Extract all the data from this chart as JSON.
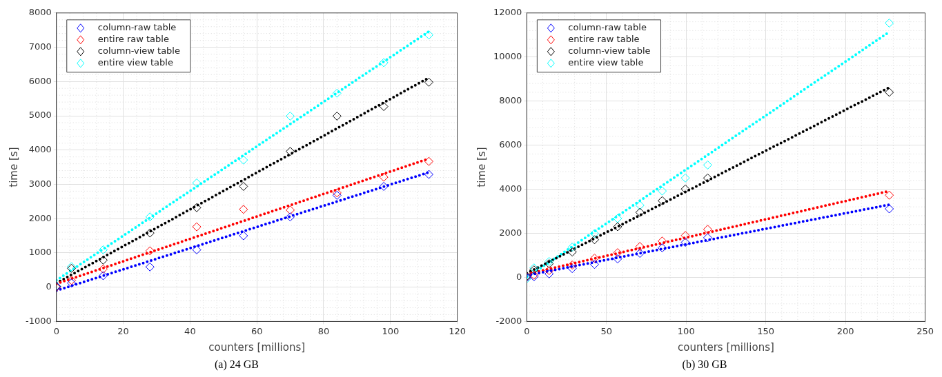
{
  "chart_data": [
    {
      "type": "scatter",
      "title": "(a)  24 GB",
      "xlabel": "counters [millions]",
      "ylabel": "time [s]",
      "xlim": [
        0,
        120
      ],
      "xticks": [
        0,
        20,
        40,
        60,
        80,
        100,
        120
      ],
      "ylim": [
        -1000,
        8000
      ],
      "yticks": [
        -1000,
        0,
        1000,
        2000,
        3000,
        4000,
        5000,
        6000,
        7000,
        8000
      ],
      "grid": true,
      "legend": "top left",
      "marker": "diamond",
      "x": [
        0,
        4.5,
        14,
        28,
        42,
        56,
        70,
        84,
        98,
        111.5
      ],
      "series": [
        {
          "name": "column-raw table",
          "color": "#0000ff",
          "values": [
            20,
            120,
            335,
            590,
            1090,
            1500,
            2050,
            2680,
            2940,
            3290
          ]
        },
        {
          "name": "entire raw table",
          "color": "#ff0000",
          "values": [
            0,
            200,
            530,
            1060,
            1760,
            2270,
            2250,
            2750,
            3210,
            3670
          ]
        },
        {
          "name": "column-view table",
          "color": "#000000",
          "values": [
            20,
            550,
            790,
            1580,
            2320,
            2940,
            3960,
            4990,
            5270,
            5980
          ]
        },
        {
          "name": "entire view table",
          "color": "#00ffff",
          "values": [
            30,
            600,
            1090,
            2050,
            3040,
            3710,
            4990,
            5660,
            6550,
            7360
          ]
        },
        {
          "type": "line",
          "line_style": "dotted",
          "marker": "none",
          "color": "#0000ff",
          "x": [
            0,
            111.5
          ],
          "values": [
            -100,
            3350
          ]
        },
        {
          "type": "line",
          "line_style": "dotted",
          "marker": "none",
          "color": "#ff0000",
          "x": [
            0,
            111.5
          ],
          "values": [
            100,
            3750
          ]
        },
        {
          "type": "line",
          "line_style": "dotted",
          "marker": "none",
          "color": "#000000",
          "x": [
            0,
            111.5
          ],
          "values": [
            120,
            6110
          ]
        },
        {
          "type": "line",
          "line_style": "dotted",
          "marker": "none",
          "color": "#00ffff",
          "x": [
            0,
            111.5
          ],
          "values": [
            200,
            7460
          ]
        }
      ]
    },
    {
      "type": "scatter",
      "title": "(b)  30 GB",
      "xlabel": "counters [millions]",
      "ylabel": "time [s]",
      "xlim": [
        0,
        250
      ],
      "xticks": [
        0,
        50,
        100,
        150,
        200,
        250
      ],
      "ylim": [
        -2000,
        12000
      ],
      "yticks": [
        -2000,
        0,
        2000,
        4000,
        6000,
        8000,
        10000,
        12000
      ],
      "grid": true,
      "legend": "top left",
      "marker": "diamond",
      "x": [
        0,
        4.5,
        14,
        28.5,
        42.5,
        57,
        71,
        85,
        99.5,
        113.5,
        227.5
      ],
      "series": [
        {
          "name": "column-raw table",
          "color": "#0000ff",
          "values": [
            0,
            30,
            160,
            400,
            590,
            840,
            1090,
            1340,
            1590,
            1800,
            3110
          ]
        },
        {
          "name": "entire raw table",
          "color": "#ff0000",
          "values": [
            0,
            100,
            310,
            560,
            870,
            1120,
            1400,
            1650,
            1900,
            2180,
            3730
          ]
        },
        {
          "name": "column-view table",
          "color": "#000000",
          "values": [
            50,
            340,
            620,
            1150,
            1710,
            2300,
            2950,
            3480,
            4010,
            4510,
            8400
          ]
        },
        {
          "name": "entire view table",
          "color": "#00ffff",
          "values": [
            -60,
            430,
            720,
            1370,
            1990,
            2670,
            3270,
            3920,
            4510,
            5100,
            11540
          ]
        },
        {
          "type": "line",
          "line_style": "dotted",
          "marker": "none",
          "color": "#0000ff",
          "x": [
            0,
            227.5
          ],
          "values": [
            90,
            3300
          ]
        },
        {
          "type": "line",
          "line_style": "dotted",
          "marker": "none",
          "color": "#ff0000",
          "x": [
            0,
            227.5
          ],
          "values": [
            150,
            3920
          ]
        },
        {
          "type": "line",
          "line_style": "dotted",
          "marker": "none",
          "color": "#000000",
          "x": [
            0,
            227.5
          ],
          "values": [
            190,
            8620
          ]
        },
        {
          "type": "line",
          "line_style": "dotted",
          "marker": "none",
          "color": "#00ffff",
          "x": [
            0,
            227.5
          ],
          "values": [
            0,
            11140
          ]
        }
      ]
    }
  ]
}
